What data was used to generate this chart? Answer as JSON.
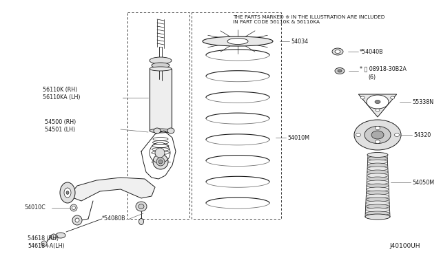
{
  "bg_color": "#ffffff",
  "note_text": "THE PARTS MARKED ※ IN THE ILLUSTRATION ARE INCLUDED\nIN PART CODE 56110K & 56110KA",
  "diagram_id": "J40100UH",
  "label_56110K": "56110K (RH)\n56110KA (LH)",
  "label_54500": "54500 (RH)\n54501 (LH)",
  "label_54010C": "54010C",
  "label_54080B": "*54080B",
  "label_54618": "54618 (RH)\n54618+A(LH)",
  "label_54034": "54034",
  "label_54010M": "54010M",
  "label_54040B": "*54040B",
  "label_nut": "* N 08918-30B2A\n  (6)",
  "label_55338N": "55338N",
  "label_54320": "54320",
  "label_54050M": "54050M"
}
